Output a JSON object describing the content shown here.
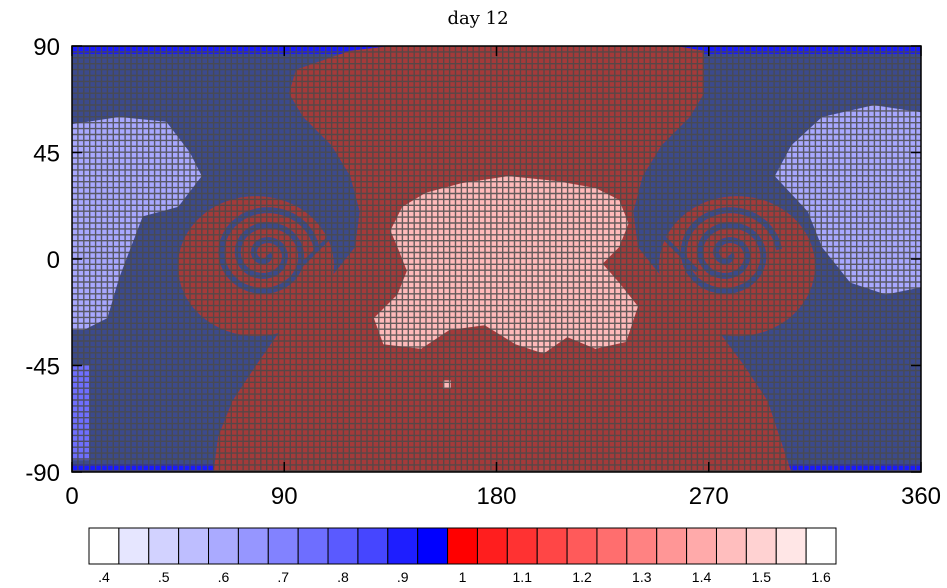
{
  "chart_data": {
    "type": "heatmap",
    "title": "day 12",
    "xlabel": "",
    "ylabel": "",
    "xlim": [
      0,
      360
    ],
    "ylim": [
      -90,
      90
    ],
    "x_ticks": [
      0,
      90,
      180,
      270,
      360
    ],
    "x_tick_labels": [
      "0",
      "90",
      "180",
      "270",
      "360"
    ],
    "y_ticks": [
      90,
      45,
      0,
      -45,
      -90
    ],
    "y_tick_labels": [
      "90",
      "45",
      "0",
      "-45",
      "-90"
    ],
    "grid": false,
    "field_description": "advected tracer ratio on a lat-lon grid; value 1 background with a red band near 120-300 deg longitude, two counter-rotating vortices near (80,0) and (280,0), lighter (>1.1) pattern near 130-240 deg longitude, 0-35 deg latitude, bluish (<0.9) region near 0-60 and 300-360 deg longitude, mid latitudes",
    "colorbar": {
      "colors": [
        "#ffffff",
        "#e6e6ff",
        "#d2d2ff",
        "#bebeff",
        "#aaaaff",
        "#9696ff",
        "#8282ff",
        "#6e6eff",
        "#5a5aff",
        "#4646ff",
        "#1e1eff",
        "#0000ff",
        "#ff0000",
        "#ff1e1e",
        "#ff3232",
        "#ff4646",
        "#ff5a5a",
        "#ff6e6e",
        "#ff8282",
        "#ff9696",
        "#ffaaaa",
        "#ffbebe",
        "#ffd2d2",
        "#ffe6e6",
        "#ffffff"
      ],
      "tick_labels": [
        ".4",
        ".5",
        ".6",
        ".7",
        ".8",
        ".9",
        "1",
        "1.1",
        "1.2",
        "1.3",
        "1.4",
        "1.5",
        "1.6"
      ]
    }
  }
}
